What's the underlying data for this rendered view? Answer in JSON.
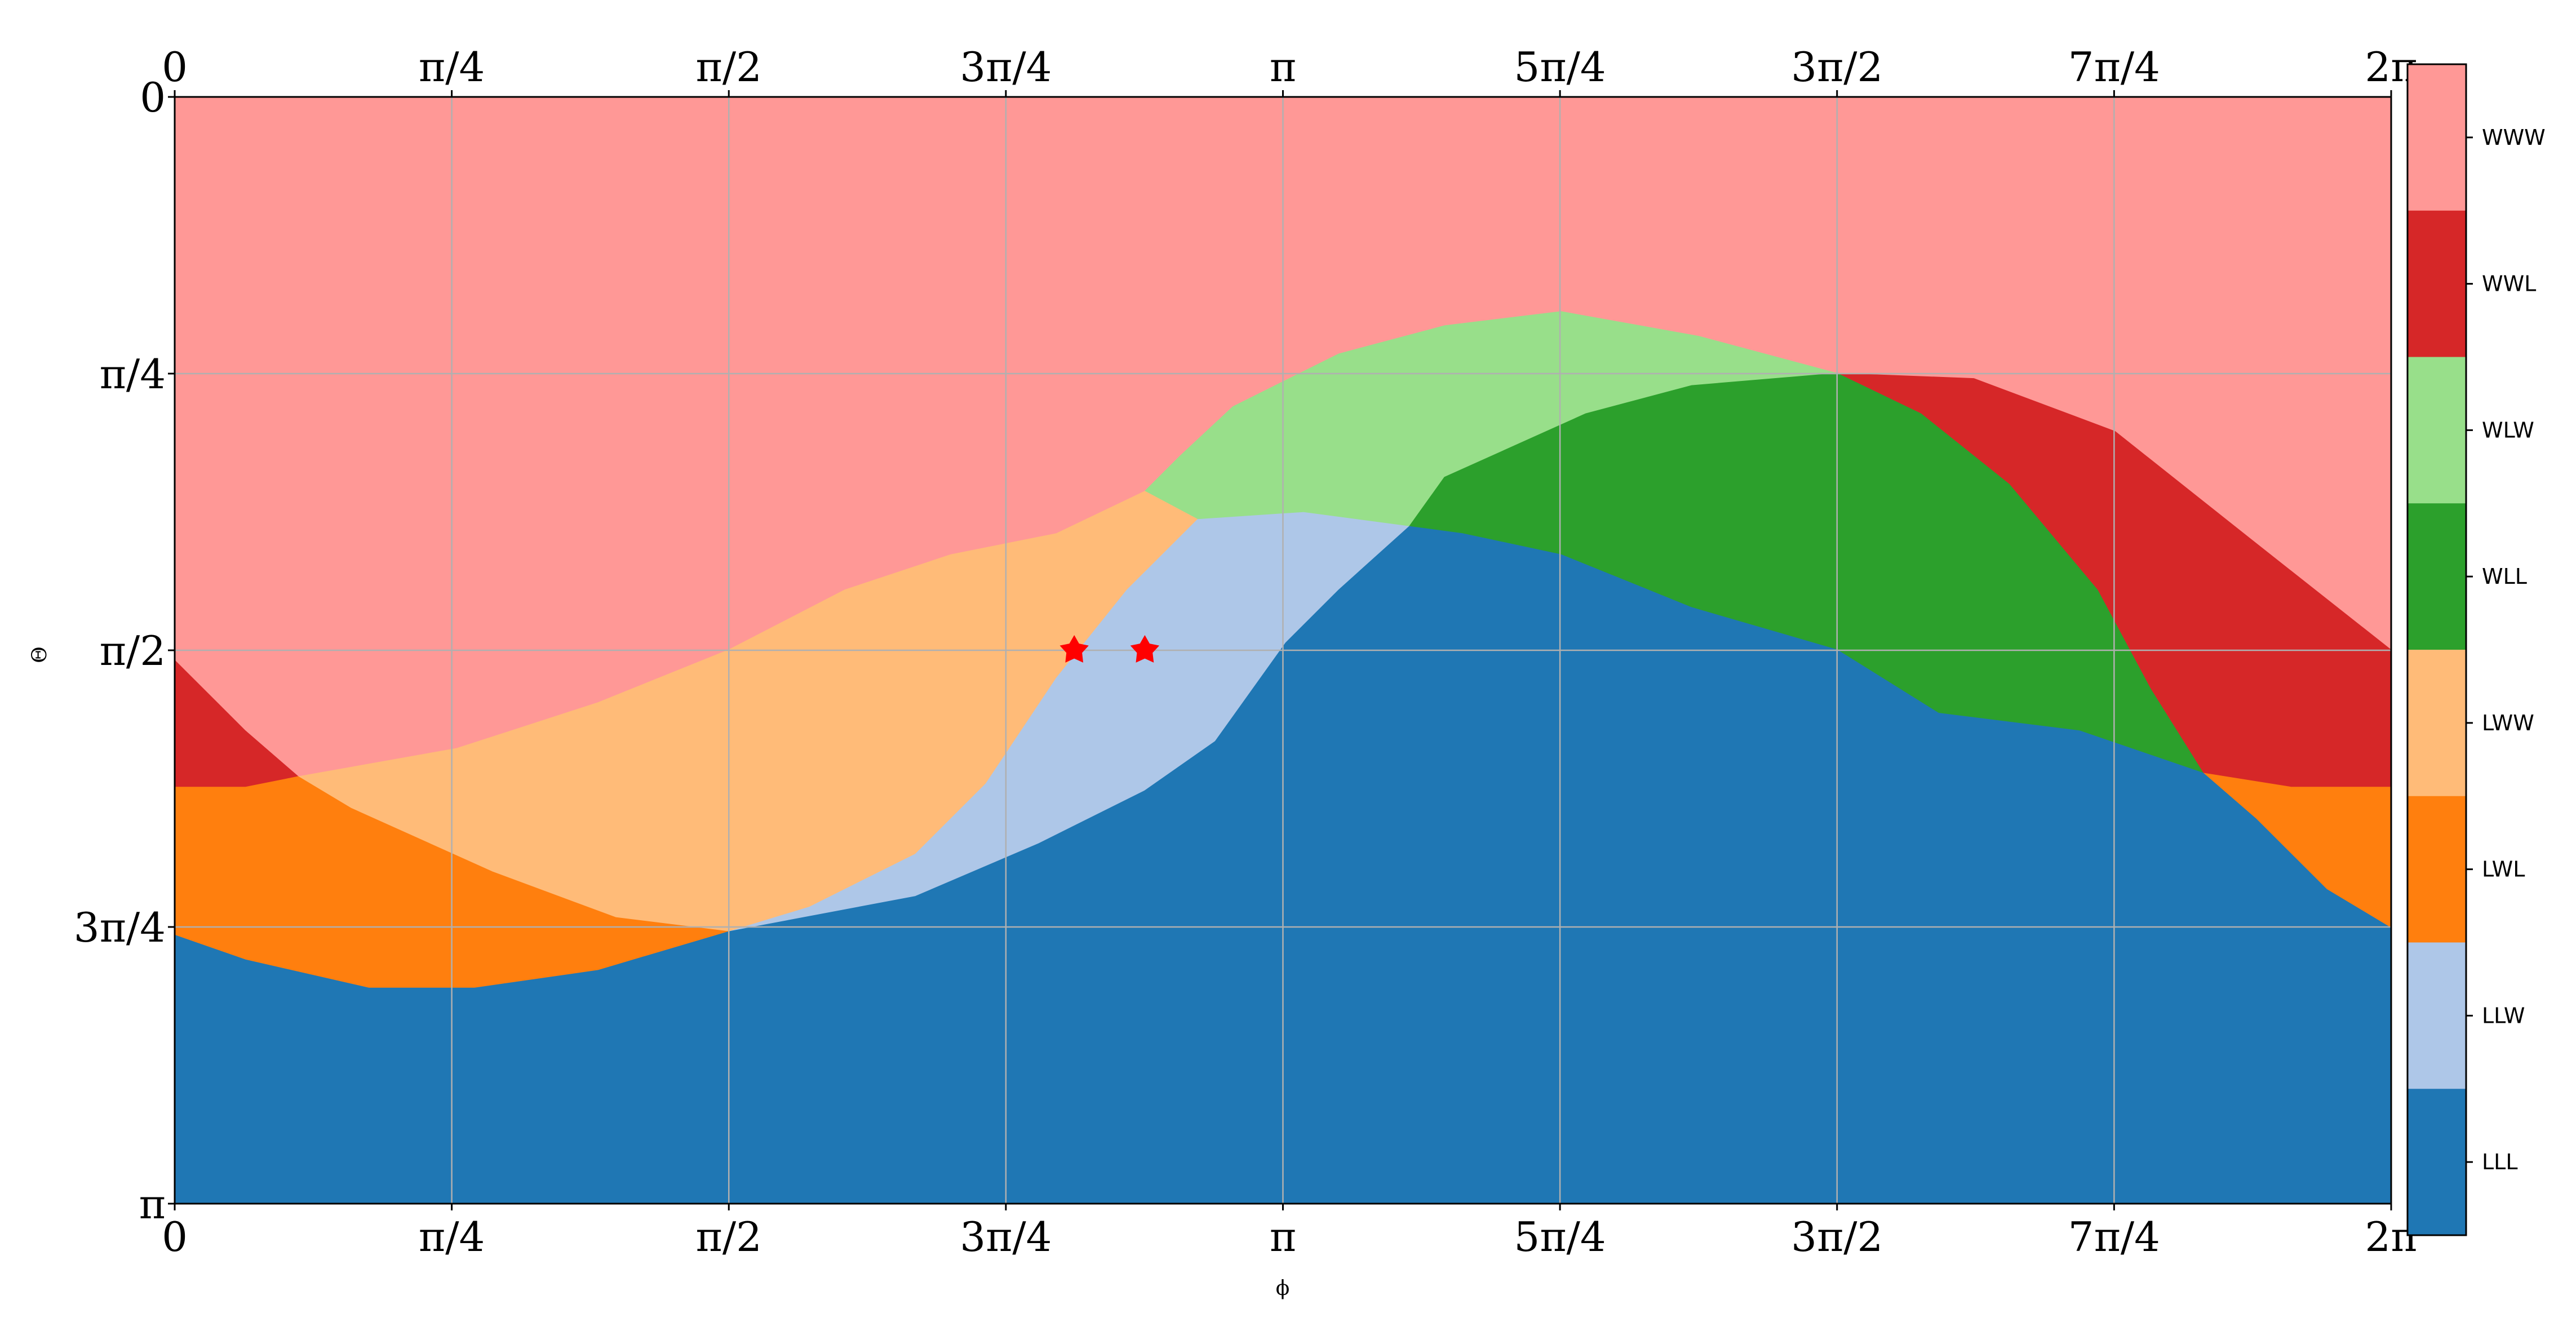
{
  "chart_data": {
    "type": "heatmap",
    "xlabel": "ϕ",
    "ylabel": "Θ",
    "xlim": [
      0,
      6.283185
    ],
    "ylim": [
      3.141593,
      0
    ],
    "grid": true,
    "x_ticks": [
      {
        "value": 0,
        "label": "0"
      },
      {
        "value": 0.785398,
        "label": "π/4"
      },
      {
        "value": 1.570796,
        "label": "π/2"
      },
      {
        "value": 2.356194,
        "label": "3π/4"
      },
      {
        "value": 3.141593,
        "label": "π"
      },
      {
        "value": 3.926991,
        "label": "5π/4"
      },
      {
        "value": 4.712389,
        "label": "3π/2"
      },
      {
        "value": 5.497787,
        "label": "7π/4"
      },
      {
        "value": 6.283185,
        "label": "2π"
      }
    ],
    "y_ticks": [
      {
        "value": 0,
        "label": "0"
      },
      {
        "value": 0.785398,
        "label": "π/4"
      },
      {
        "value": 1.570796,
        "label": "π/2"
      },
      {
        "value": 2.356194,
        "label": "3π/4"
      },
      {
        "value": 3.141593,
        "label": "π"
      }
    ],
    "categories": [
      {
        "name": "WWW",
        "color": "#ff9896"
      },
      {
        "name": "WWL",
        "color": "#d62728"
      },
      {
        "name": "WLW",
        "color": "#98df8a"
      },
      {
        "name": "WLL",
        "color": "#2ca02c"
      },
      {
        "name": "LWW",
        "color": "#ffbb78"
      },
      {
        "name": "LWL",
        "color": "#ff7f0e"
      },
      {
        "name": "LLW",
        "color": "#aec7e8"
      },
      {
        "name": "LLL",
        "color": "#1f77b4"
      }
    ],
    "legend_placement": "right colorbar",
    "regions": [
      {
        "name": "WWW",
        "boundary": [
          [
            0,
            0
          ],
          [
            6.2832,
            0
          ],
          [
            6.2832,
            1.5708
          ],
          [
            5.89,
            1.26
          ],
          [
            5.5,
            0.95
          ],
          [
            5.1,
            0.8
          ],
          [
            4.712,
            0.785
          ],
          [
            4.32,
            0.68
          ],
          [
            3.93,
            0.61
          ],
          [
            3.6,
            0.65
          ],
          [
            3.3,
            0.73
          ],
          [
            3.0,
            0.88
          ],
          [
            2.85,
            1.02
          ],
          [
            2.75,
            1.12
          ],
          [
            2.5,
            1.24
          ],
          [
            2.2,
            1.3
          ],
          [
            1.9,
            1.4
          ],
          [
            1.571,
            1.57
          ],
          [
            1.2,
            1.72
          ],
          [
            0.8,
            1.85
          ],
          [
            0.35,
            1.93
          ],
          [
            0.2,
            1.8
          ],
          [
            0,
            1.6
          ]
        ]
      },
      {
        "name": "WWL",
        "boundary": [
          [
            0,
            1.6
          ],
          [
            0.2,
            1.8
          ],
          [
            0.35,
            1.93
          ],
          [
            0.2,
            1.96
          ],
          [
            0,
            1.96
          ]
        ]
      },
      {
        "name": "WWL",
        "boundary": [
          [
            4.712,
            0.785
          ],
          [
            5.1,
            0.8
          ],
          [
            5.5,
            0.95
          ],
          [
            5.89,
            1.26
          ],
          [
            6.2832,
            1.5708
          ],
          [
            6.2832,
            1.96
          ],
          [
            6.0,
            1.96
          ],
          [
            5.75,
            1.92
          ],
          [
            5.6,
            1.68
          ],
          [
            5.45,
            1.4
          ],
          [
            5.2,
            1.1
          ],
          [
            4.95,
            0.9
          ]
        ]
      },
      {
        "name": "WLW",
        "boundary": [
          [
            2.75,
            1.12
          ],
          [
            2.85,
            1.02
          ],
          [
            3.0,
            0.88
          ],
          [
            3.3,
            0.73
          ],
          [
            3.6,
            0.65
          ],
          [
            3.93,
            0.61
          ],
          [
            4.32,
            0.68
          ],
          [
            4.712,
            0.785
          ],
          [
            4.3,
            0.82
          ],
          [
            4.0,
            0.9
          ],
          [
            3.6,
            1.08
          ],
          [
            3.5,
            1.22
          ],
          [
            3.2,
            1.18
          ],
          [
            2.9,
            1.2
          ]
        ]
      },
      {
        "name": "WLL",
        "boundary": [
          [
            3.5,
            1.22
          ],
          [
            3.6,
            1.08
          ],
          [
            4.0,
            0.9
          ],
          [
            4.3,
            0.82
          ],
          [
            4.712,
            0.785
          ],
          [
            4.95,
            0.9
          ],
          [
            5.2,
            1.1
          ],
          [
            5.45,
            1.4
          ],
          [
            5.6,
            1.68
          ],
          [
            5.75,
            1.92
          ],
          [
            5.4,
            1.8
          ],
          [
            5.0,
            1.75
          ],
          [
            4.712,
            1.57
          ],
          [
            4.3,
            1.45
          ],
          [
            3.93,
            1.3
          ],
          [
            3.65,
            1.24
          ]
        ]
      },
      {
        "name": "LWW",
        "boundary": [
          [
            0.35,
            1.93
          ],
          [
            0.8,
            1.85
          ],
          [
            1.2,
            1.72
          ],
          [
            1.571,
            1.57
          ],
          [
            1.9,
            1.4
          ],
          [
            2.2,
            1.3
          ],
          [
            2.5,
            1.24
          ],
          [
            2.75,
            1.12
          ],
          [
            2.9,
            1.2
          ],
          [
            2.7,
            1.4
          ],
          [
            2.5,
            1.65
          ],
          [
            2.3,
            1.95
          ],
          [
            2.1,
            2.15
          ],
          [
            1.8,
            2.3
          ],
          [
            1.571,
            2.37
          ],
          [
            1.25,
            2.33
          ],
          [
            0.9,
            2.2
          ],
          [
            0.5,
            2.02
          ]
        ]
      },
      {
        "name": "LWL",
        "boundary": [
          [
            0,
            1.96
          ],
          [
            0.2,
            1.96
          ],
          [
            0.35,
            1.93
          ],
          [
            0.5,
            2.02
          ],
          [
            0.9,
            2.2
          ],
          [
            1.25,
            2.33
          ],
          [
            1.571,
            2.37
          ],
          [
            1.2,
            2.48
          ],
          [
            0.85,
            2.53
          ],
          [
            0.55,
            2.53
          ],
          [
            0.2,
            2.45
          ],
          [
            0,
            2.38
          ]
        ]
      },
      {
        "name": "LWL",
        "boundary": [
          [
            5.75,
            1.92
          ],
          [
            6.0,
            1.96
          ],
          [
            6.2832,
            1.96
          ],
          [
            6.2832,
            2.36
          ],
          [
            6.1,
            2.25
          ],
          [
            5.9,
            2.05
          ]
        ]
      },
      {
        "name": "LLW",
        "boundary": [
          [
            2.9,
            1.2
          ],
          [
            3.2,
            1.18
          ],
          [
            3.5,
            1.22
          ],
          [
            3.3,
            1.4
          ],
          [
            3.15,
            1.55
          ],
          [
            2.95,
            1.83
          ],
          [
            2.75,
            1.97
          ],
          [
            2.45,
            2.12
          ],
          [
            2.1,
            2.27
          ],
          [
            1.571,
            2.37
          ],
          [
            1.8,
            2.3
          ],
          [
            2.1,
            2.15
          ],
          [
            2.3,
            1.95
          ],
          [
            2.5,
            1.65
          ],
          [
            2.7,
            1.4
          ]
        ]
      },
      {
        "name": "LLL",
        "boundary": [
          [
            0,
            2.38
          ],
          [
            0.2,
            2.45
          ],
          [
            0.55,
            2.53
          ],
          [
            0.85,
            2.53
          ],
          [
            1.2,
            2.48
          ],
          [
            1.571,
            2.37
          ],
          [
            2.1,
            2.27
          ],
          [
            2.45,
            2.12
          ],
          [
            2.75,
            1.97
          ],
          [
            2.95,
            1.83
          ],
          [
            3.15,
            1.55
          ],
          [
            3.3,
            1.4
          ],
          [
            3.5,
            1.22
          ],
          [
            3.65,
            1.24
          ],
          [
            3.93,
            1.3
          ],
          [
            4.3,
            1.45
          ],
          [
            4.712,
            1.57
          ],
          [
            5.0,
            1.75
          ],
          [
            5.4,
            1.8
          ],
          [
            5.75,
            1.92
          ],
          [
            5.9,
            2.05
          ],
          [
            6.1,
            2.25
          ],
          [
            6.2832,
            2.36
          ],
          [
            6.2832,
            3.1416
          ],
          [
            0,
            3.1416
          ]
        ]
      }
    ],
    "markers": [
      {
        "x": 2.55,
        "y": 1.5708,
        "symbol": "star",
        "color": "#ff0000"
      },
      {
        "x": 2.75,
        "y": 1.5708,
        "symbol": "star",
        "color": "#ff0000"
      }
    ]
  }
}
